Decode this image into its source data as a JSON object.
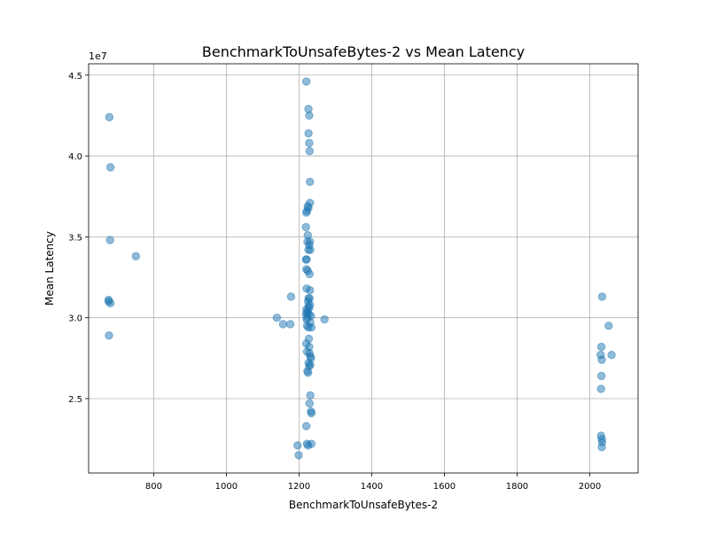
{
  "chart_data": {
    "type": "scatter",
    "title": "BenchmarkToUnsafeBytes-2 vs Mean Latency",
    "xlabel": "BenchmarkToUnsafeBytes-2",
    "ylabel": "Mean Latency",
    "y_offset_label": "1e7",
    "xlim": [
      621,
      2133
    ],
    "ylim": [
      20400000.0,
      45700000.0
    ],
    "x_ticks": [
      800,
      1000,
      1200,
      1400,
      1600,
      1800,
      2000
    ],
    "y_ticks": [
      25000000.0,
      30000000.0,
      35000000.0,
      40000000.0,
      45000000.0
    ],
    "x_tick_labels": [
      "800",
      "1000",
      "1200",
      "1400",
      "1600",
      "1800",
      "2000"
    ],
    "y_tick_labels": [
      "2.5",
      "3.0",
      "3.5",
      "4.0",
      "4.5"
    ],
    "grid": true,
    "marker_color": "#1f77b4",
    "marker_alpha": 0.5,
    "points": [
      {
        "x": 678,
        "y": 42400000.0
      },
      {
        "x": 681,
        "y": 39300000.0
      },
      {
        "x": 680,
        "y": 34800000.0
      },
      {
        "x": 676,
        "y": 31100000.0
      },
      {
        "x": 676,
        "y": 31000000.0
      },
      {
        "x": 681,
        "y": 30900000.0
      },
      {
        "x": 677,
        "y": 28900000.0
      },
      {
        "x": 751,
        "y": 33800000.0
      },
      {
        "x": 1220,
        "y": 44600000.0
      },
      {
        "x": 1226,
        "y": 42900000.0
      },
      {
        "x": 1228,
        "y": 42500000.0
      },
      {
        "x": 1226,
        "y": 41400000.0
      },
      {
        "x": 1228,
        "y": 40800000.0
      },
      {
        "x": 1229,
        "y": 40300000.0
      },
      {
        "x": 1230,
        "y": 38400000.0
      },
      {
        "x": 1230,
        "y": 37100000.0
      },
      {
        "x": 1224,
        "y": 36900000.0
      },
      {
        "x": 1226,
        "y": 36800000.0
      },
      {
        "x": 1222,
        "y": 36600000.0
      },
      {
        "x": 1220,
        "y": 36500000.0
      },
      {
        "x": 1219,
        "y": 35600000.0
      },
      {
        "x": 1224,
        "y": 35100000.0
      },
      {
        "x": 1223,
        "y": 34700000.0
      },
      {
        "x": 1230,
        "y": 34700000.0
      },
      {
        "x": 1228,
        "y": 34500000.0
      },
      {
        "x": 1226,
        "y": 34200000.0
      },
      {
        "x": 1231,
        "y": 34200000.0
      },
      {
        "x": 1219,
        "y": 33600000.0
      },
      {
        "x": 1221,
        "y": 33600000.0
      },
      {
        "x": 1220,
        "y": 33000000.0
      },
      {
        "x": 1224,
        "y": 32900000.0
      },
      {
        "x": 1229,
        "y": 32700000.0
      },
      {
        "x": 1221,
        "y": 31800000.0
      },
      {
        "x": 1230,
        "y": 31700000.0
      },
      {
        "x": 1178,
        "y": 31300000.0
      },
      {
        "x": 1226,
        "y": 31200000.0
      },
      {
        "x": 1229,
        "y": 31200000.0
      },
      {
        "x": 1225,
        "y": 31000000.0
      },
      {
        "x": 1230,
        "y": 30800000.0
      },
      {
        "x": 1226,
        "y": 30700000.0
      },
      {
        "x": 1228,
        "y": 30600000.0
      },
      {
        "x": 1220,
        "y": 30500000.0
      },
      {
        "x": 1224,
        "y": 30400000.0
      },
      {
        "x": 1222,
        "y": 30300000.0
      },
      {
        "x": 1219,
        "y": 30200000.0
      },
      {
        "x": 1227,
        "y": 30200000.0
      },
      {
        "x": 1233,
        "y": 30100000.0
      },
      {
        "x": 1139,
        "y": 30000000.0
      },
      {
        "x": 1223,
        "y": 30000000.0
      },
      {
        "x": 1221,
        "y": 29900000.0
      },
      {
        "x": 1270,
        "y": 29900000.0
      },
      {
        "x": 1231,
        "y": 29700000.0
      },
      {
        "x": 1156,
        "y": 29600000.0
      },
      {
        "x": 1176,
        "y": 29600000.0
      },
      {
        "x": 1222,
        "y": 29500000.0
      },
      {
        "x": 1226,
        "y": 29400000.0
      },
      {
        "x": 1234,
        "y": 29400000.0
      },
      {
        "x": 1227,
        "y": 28700000.0
      },
      {
        "x": 1220,
        "y": 28400000.0
      },
      {
        "x": 1228,
        "y": 28200000.0
      },
      {
        "x": 1222,
        "y": 27900000.0
      },
      {
        "x": 1229,
        "y": 27800000.0
      },
      {
        "x": 1231,
        "y": 27600000.0
      },
      {
        "x": 1233,
        "y": 27500000.0
      },
      {
        "x": 1226,
        "y": 27200000.0
      },
      {
        "x": 1231,
        "y": 27100000.0
      },
      {
        "x": 1228,
        "y": 27000000.0
      },
      {
        "x": 1223,
        "y": 26700000.0
      },
      {
        "x": 1225,
        "y": 26600000.0
      },
      {
        "x": 1231,
        "y": 25200000.0
      },
      {
        "x": 1229,
        "y": 24700000.0
      },
      {
        "x": 1233,
        "y": 24200000.0
      },
      {
        "x": 1234,
        "y": 24100000.0
      },
      {
        "x": 1220,
        "y": 23300000.0
      },
      {
        "x": 1234,
        "y": 22200000.0
      },
      {
        "x": 1222,
        "y": 22200000.0
      },
      {
        "x": 1196,
        "y": 22100000.0
      },
      {
        "x": 1225,
        "y": 22100000.0
      },
      {
        "x": 1199,
        "y": 21500000.0
      },
      {
        "x": 2034,
        "y": 31300000.0
      },
      {
        "x": 2052,
        "y": 29500000.0
      },
      {
        "x": 2032,
        "y": 28200000.0
      },
      {
        "x": 2030,
        "y": 27700000.0
      },
      {
        "x": 2060,
        "y": 27700000.0
      },
      {
        "x": 2033,
        "y": 27400000.0
      },
      {
        "x": 2032,
        "y": 26400000.0
      },
      {
        "x": 2031,
        "y": 25600000.0
      },
      {
        "x": 2031,
        "y": 22700000.0
      },
      {
        "x": 2033,
        "y": 22500000.0
      },
      {
        "x": 2034,
        "y": 22300000.0
      },
      {
        "x": 2033,
        "y": 22000000.0
      }
    ]
  }
}
